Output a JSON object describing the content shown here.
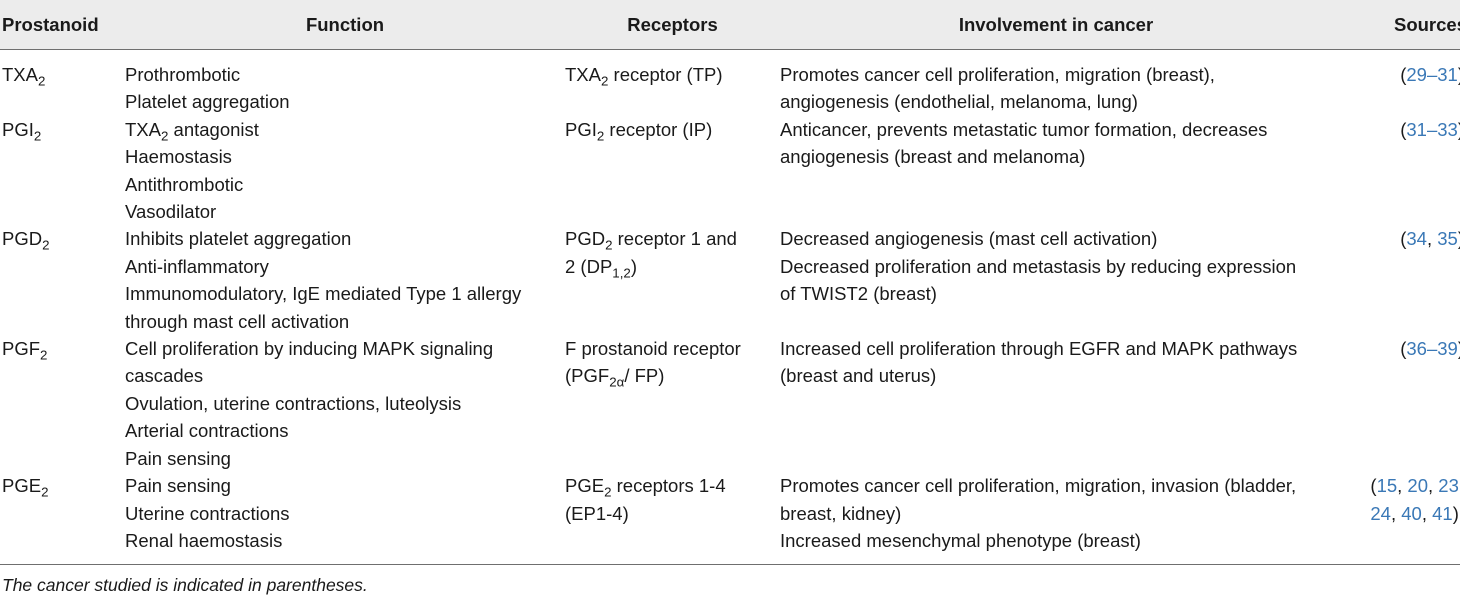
{
  "headers": [
    "Prostanoid",
    "Function",
    "Receptors",
    "Involvement in cancer",
    "Sources"
  ],
  "rows": [
    {
      "prostanoid": {
        "main": "TXA",
        "sub": "2"
      },
      "function": [
        [
          "Prothrombotic"
        ],
        [
          "Platelet aggregation"
        ]
      ],
      "receptors": [
        [
          [
            "TXA",
            ""
          ],
          [
            "2",
            "sub"
          ],
          [
            " receptor (TP)",
            ""
          ]
        ]
      ],
      "cancer": [
        "Promotes cancer cell proliferation, migration (breast),",
        "angiogenesis (endothelial, melanoma, lung)"
      ],
      "sources": [
        [
          [
            "(",
            ""
          ],
          [
            "29–31",
            "ref"
          ],
          [
            ")",
            ""
          ]
        ]
      ]
    },
    {
      "prostanoid": {
        "main": "PGI",
        "sub": "2"
      },
      "function": [
        [
          [
            "TXA",
            ""
          ],
          [
            "2",
            "sub"
          ],
          [
            " antagonist",
            ""
          ]
        ],
        [
          "Haemostasis"
        ],
        [
          "Antithrombotic"
        ],
        [
          "Vasodilator"
        ]
      ],
      "receptors": [
        [
          [
            "PGI",
            ""
          ],
          [
            "2",
            "sub"
          ],
          [
            " receptor (IP)",
            ""
          ]
        ]
      ],
      "cancer": [
        "Anticancer, prevents metastatic tumor formation, decreases",
        "angiogenesis (breast and melanoma)"
      ],
      "sources": [
        [
          [
            "(",
            ""
          ],
          [
            "31–33",
            "ref"
          ],
          [
            ")",
            ""
          ]
        ]
      ]
    },
    {
      "prostanoid": {
        "main": "PGD",
        "sub": "2"
      },
      "function": [
        [
          "Inhibits platelet aggregation"
        ],
        [
          "Anti-inflammatory"
        ],
        [
          "Immunomodulatory, IgE mediated Type 1 allergy"
        ],
        [
          "through mast cell activation"
        ]
      ],
      "receptors": [
        [
          [
            "PGD",
            ""
          ],
          [
            "2",
            "sub"
          ],
          [
            " receptor 1 and",
            ""
          ]
        ],
        [
          [
            "2 (DP",
            ""
          ],
          [
            "1,2",
            "sub"
          ],
          [
            ")",
            ""
          ]
        ]
      ],
      "cancer": [
        "Decreased angiogenesis (mast cell activation)",
        "Decreased proliferation and metastasis by reducing expression",
        "of TWIST2 (breast)"
      ],
      "sources": [
        [
          [
            "(",
            ""
          ],
          [
            "34",
            "ref"
          ],
          [
            ", ",
            ""
          ],
          [
            "35",
            "ref"
          ],
          [
            ")",
            ""
          ]
        ]
      ]
    },
    {
      "prostanoid": {
        "main": "PGF",
        "sub": "2"
      },
      "function": [
        [
          "Cell proliferation by inducing MAPK signaling"
        ],
        [
          "cascades"
        ],
        [
          "Ovulation, uterine contractions, luteolysis"
        ],
        [
          "Arterial contractions"
        ],
        [
          "Pain sensing"
        ]
      ],
      "receptors": [
        [
          [
            "F prostanoid receptor",
            ""
          ]
        ],
        [
          [
            "(PGF",
            ""
          ],
          [
            "2α",
            "sub"
          ],
          [
            "/ FP)",
            ""
          ]
        ]
      ],
      "cancer": [
        "Increased cell proliferation through EGFR and MAPK pathways",
        "(breast and uterus)"
      ],
      "sources": [
        [
          [
            "(",
            ""
          ],
          [
            "36–39",
            "ref"
          ],
          [
            ")",
            ""
          ]
        ]
      ]
    },
    {
      "prostanoid": {
        "main": "PGE",
        "sub": "2"
      },
      "function": [
        [
          "Pain sensing"
        ],
        [
          "Uterine contractions"
        ],
        [
          "Renal haemostasis"
        ]
      ],
      "receptors": [
        [
          [
            "PGE",
            ""
          ],
          [
            "2",
            "sub"
          ],
          [
            " receptors 1-4",
            ""
          ]
        ],
        [
          [
            " (EP1-4)",
            ""
          ]
        ]
      ],
      "cancer": [
        "Promotes cancer cell proliferation, migration, invasion (bladder,",
        "breast, kidney)",
        "Increased mesenchymal phenotype (breast)"
      ],
      "sources": [
        [
          [
            "(",
            ""
          ],
          [
            "15",
            "ref"
          ],
          [
            ", ",
            ""
          ],
          [
            "20",
            "ref"
          ],
          [
            ", ",
            ""
          ],
          [
            "23",
            "ref"
          ],
          [
            ",",
            ""
          ]
        ],
        [
          [
            "24",
            "ref"
          ],
          [
            ", ",
            ""
          ],
          [
            "40",
            "ref"
          ],
          [
            ", ",
            ""
          ],
          [
            "41",
            "ref"
          ],
          [
            ")",
            ""
          ]
        ]
      ]
    }
  ],
  "footnote": "The cancer studied is indicated in parentheses.",
  "colors": {
    "header_bg": "#ececec",
    "rule": "#6f6f6f",
    "ref_link": "#3a78b6",
    "text": "#1a1a1a"
  }
}
